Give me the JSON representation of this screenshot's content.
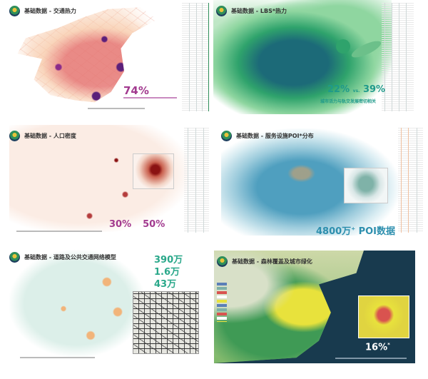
{
  "slides": [
    {
      "title": "基础数据 - 交通热力",
      "stat": "74%",
      "accent": "#a23a8f",
      "map_colors": [
        "#f7c9a8",
        "#e36b6b",
        "#5b1f7a"
      ]
    },
    {
      "title": "基础数据 - LBS*热力",
      "stat_a": "22%",
      "vs": "vs.",
      "stat_b": "39%",
      "caption": "城市活力与轨交发展密切相关",
      "accent": "#1f9a8a",
      "map_colors": [
        "#8fd6a0",
        "#2fa36c",
        "#1c6a78"
      ]
    },
    {
      "title": "基础数据 - 人口密度",
      "stat_a": "30%",
      "stat_b": "50%",
      "accent": "#a23a8f",
      "map_colors": [
        "#fbece4",
        "#d68a7a",
        "#8a1212"
      ]
    },
    {
      "title": "基础数据 - 服务设施POI*分布",
      "stat": "4800万",
      "stat_suffix": "+",
      "stat_label": "POI数据",
      "accent": "#2d8fae",
      "map_colors": [
        "#d8ecf2",
        "#4f9fbf",
        "#e0a060"
      ]
    },
    {
      "title": "基础数据 - 道路及公共交通网络模型",
      "stats": [
        "390万",
        "1.6万",
        "43万"
      ],
      "accent": "#2aa88a",
      "map_colors": [
        "#dcefe9",
        "#f2b47a",
        "#333333"
      ]
    },
    {
      "title": "基础数据 - 森林覆盖及城市绿化",
      "stat": "16%",
      "stat_suffix": "*",
      "accent": "#ffffff",
      "map_colors": [
        "#183a4e",
        "#e8e23c",
        "#3f9a55",
        "#d9534f"
      ]
    }
  ]
}
